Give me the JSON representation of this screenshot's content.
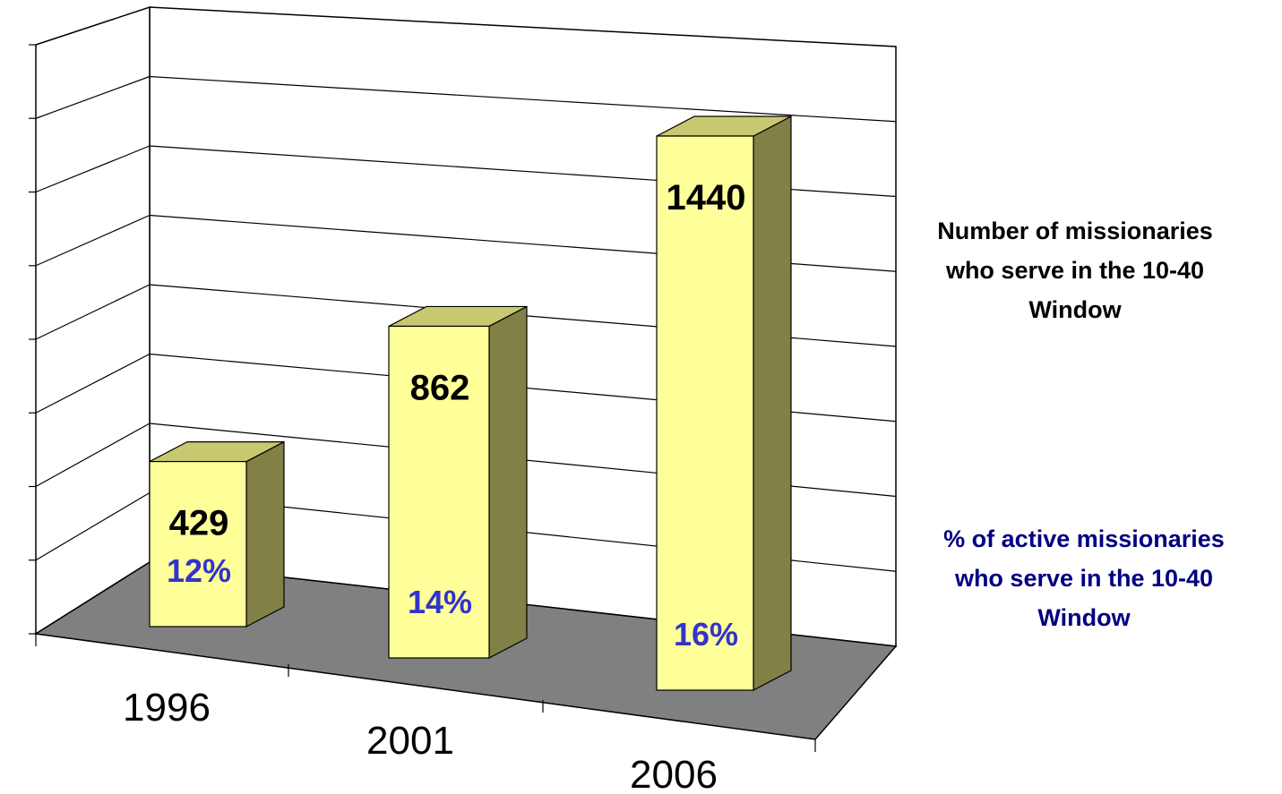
{
  "chart_data": {
    "type": "bar",
    "title": "",
    "xlabel": "",
    "ylabel": "",
    "categories": [
      "1996",
      "2001",
      "2006"
    ],
    "series": [
      {
        "name": "Number of missionaries who serve in the 10-40 Window",
        "values": [
          429,
          862,
          1440
        ],
        "labels": [
          "429",
          "862",
          "1440"
        ]
      },
      {
        "name": "% of active missionaries who serve in the 10-40 Window",
        "values": [
          12,
          14,
          16
        ],
        "labels": [
          "12%",
          "14%",
          "16%"
        ]
      }
    ],
    "ylim": [
      0,
      1600
    ],
    "grid": true,
    "style": "3d-column",
    "legend_placement": "right"
  },
  "legend": {
    "count_lines": [
      "Number of missionaries",
      "who serve in the 10-40",
      "Window"
    ],
    "percent_lines": [
      "% of active missionaries",
      "who serve in the 10-40",
      "Window"
    ]
  },
  "colors": {
    "bar_front": "#ffff99",
    "bar_top": "#c8c870",
    "bar_side": "#808047",
    "floor": "#808080",
    "count_label": "#000000",
    "percent_label": "#3333cc",
    "percent_legend": "#000080",
    "grid": "#000000"
  }
}
